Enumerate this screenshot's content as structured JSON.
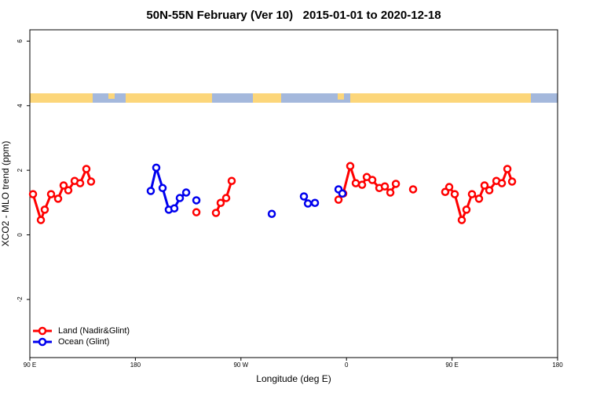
{
  "chart_data": {
    "type": "line",
    "title": "50N-55N February (Ver 10)   2015-01-01 to 2020-12-18",
    "x_label": "Longitude (deg E)",
    "y_label": "XCO2 - MLO trend (ppm)",
    "xlim": [
      90,
      540
    ],
    "xticks": [
      {
        "value": 90,
        "label": "90 E"
      },
      {
        "value": 180,
        "label": "180"
      },
      {
        "value": 270,
        "label": "90 W"
      },
      {
        "value": 360,
        "label": "0"
      },
      {
        "value": 450,
        "label": "90 E"
      },
      {
        "value": 540,
        "label": "180"
      }
    ],
    "ylim": [
      -3.8,
      6.35
    ],
    "yticks": [
      -2,
      0,
      2,
      4,
      6
    ],
    "legend": "bottomleft",
    "series": [
      {
        "name": "Land (Nadir&Glint)",
        "color": "#ff0000",
        "x": [
          92.7,
          99.4,
          102.7,
          108.1,
          114.1,
          118.8,
          122.8,
          128.2,
          132.9,
          138.2,
          142.2,
          null,
          232,
          null,
          248.7,
          252.7,
          257.4,
          262.1,
          null,
          353.2,
          357.2,
          363.2,
          367.9,
          373.3,
          377.3,
          382,
          388,
          392.7,
          397.4,
          402.1,
          null,
          416.8,
          null,
          444.2,
          447.6,
          452.3,
          458.3,
          462.3,
          467,
          473,
          477.7,
          481.8,
          487.8,
          492.5,
          497.2,
          501.2
        ],
        "values": [
          1.26,
          0.46,
          0.78,
          1.26,
          1.12,
          1.53,
          1.38,
          1.67,
          1.6,
          2.04,
          1.65,
          null,
          0.7,
          null,
          0.68,
          0.99,
          1.14,
          1.67,
          null,
          1.09,
          1.28,
          2.13,
          1.6,
          1.55,
          1.79,
          1.7,
          1.45,
          1.5,
          1.31,
          1.58,
          null,
          1.41,
          null,
          1.33,
          1.48,
          1.26,
          0.46,
          0.78,
          1.26,
          1.12,
          1.53,
          1.38,
          1.67,
          1.6,
          2.04,
          1.65
        ]
      },
      {
        "name": "Ocean (Glint)",
        "color": "#0000ee",
        "x": [
          193.1,
          197.8,
          203.2,
          208.5,
          213.2,
          217.9,
          223.3,
          null,
          232,
          null,
          296.3,
          null,
          323.7,
          327.1,
          333.1,
          null,
          353.2,
          356.5
        ],
        "values": [
          1.36,
          2.08,
          1.45,
          0.78,
          0.82,
          1.14,
          1.31,
          null,
          1.07,
          null,
          0.65,
          null,
          1.19,
          0.97,
          0.99,
          null,
          1.41,
          1.28
        ]
      }
    ]
  }
}
